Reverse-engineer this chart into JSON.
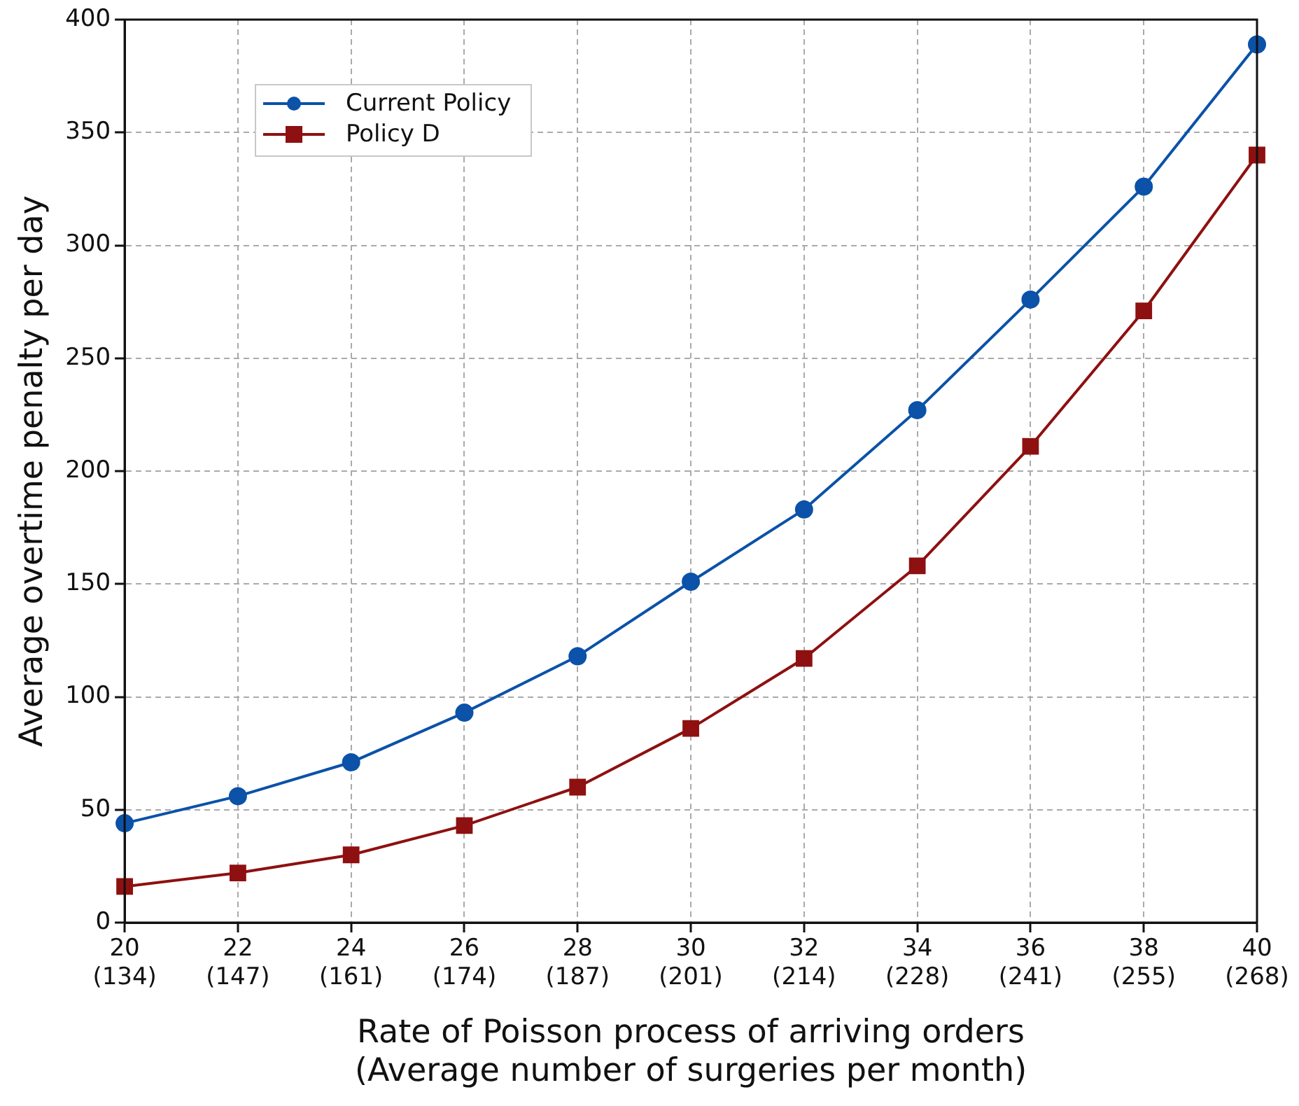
{
  "chart_data": {
    "type": "line",
    "xlabel": "Rate of Poisson process of arriving orders\n(Average number of surgeries per month)",
    "ylabel": "Average overtime penalty per day",
    "categories": [
      "20\n(134)",
      "22\n(147)",
      "24\n(161)",
      "26\n(174)",
      "28\n(187)",
      "30\n(201)",
      "32\n(214)",
      "34\n(228)",
      "36\n(241)",
      "38\n(255)",
      "40\n(268)"
    ],
    "series": [
      {
        "name": "Current Policy",
        "color": "#0b52a8",
        "marker": "circle",
        "values": [
          44,
          56,
          71,
          93,
          118,
          151,
          183,
          227,
          276,
          326,
          389
        ]
      },
      {
        "name": "Policy D",
        "color": "#8e1010",
        "marker": "square",
        "values": [
          16,
          22,
          30,
          43,
          60,
          86,
          117,
          158,
          211,
          271,
          340
        ]
      }
    ],
    "ylim": [
      0,
      400
    ],
    "yticks": [
      0,
      50,
      100,
      150,
      200,
      250,
      300,
      350,
      400
    ],
    "grid": true,
    "legend": "top left",
    "line_style": "solid"
  }
}
